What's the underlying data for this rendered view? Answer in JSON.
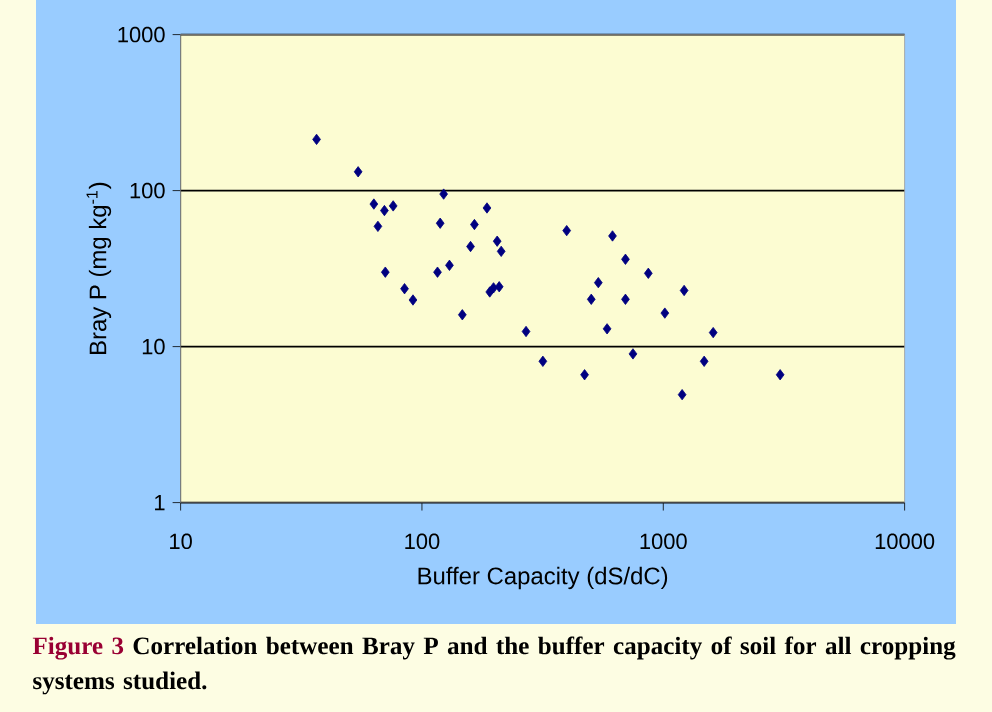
{
  "chart_data": {
    "type": "scatter",
    "xlabel": "Buffer Capacity (dS/dC)",
    "ylabel": "Bray P (mg kg$^{-1}$)",
    "annotations": [
      "Figure 3",
      "Correlation between Bray P and the buffer capacity of soil for all cropping systems studied."
    ],
    "x": [
      36.6,
      54.4,
      63.2,
      65.7,
      69.9,
      76,
      70.5,
      84.7,
      91.8,
      116,
      119,
      123,
      130,
      147,
      159,
      165,
      186,
      191,
      198,
      209,
      205,
      213,
      270,
      317,
      398,
      472,
      503,
      538,
      585,
      616,
      697,
      697,
      749,
      867,
      1015,
      1197,
      1220,
      1477,
      1610,
      3050
    ],
    "values": [
      213,
      132,
      82,
      59,
      74.5,
      79.8,
      30,
      23.5,
      19.9,
      30,
      61.8,
      95,
      33.2,
      16,
      43.8,
      60.6,
      77.4,
      22.4,
      23.8,
      24.2,
      47.4,
      40.8,
      12.5,
      8.05,
      55.4,
      6.6,
      20.1,
      25.7,
      13,
      51.2,
      36.3,
      20.1,
      8.98,
      29.5,
      16.4,
      4.92,
      22.9,
      8.05,
      12.3,
      6.6
    ],
    "color": "#000080",
    "marker": "diamond",
    "log": "xy",
    "grid": "y",
    "xlim": [
      10,
      10000
    ],
    "ylim": [
      1,
      1000
    ],
    "xticks": [
      10,
      100,
      1000,
      10000
    ],
    "yticks": [
      1,
      10,
      100,
      1000
    ]
  }
}
